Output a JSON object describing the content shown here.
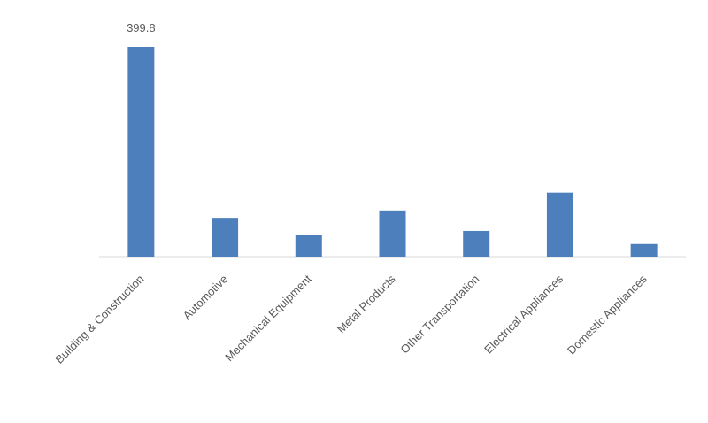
{
  "chart_data": {
    "type": "bar",
    "categories": [
      "Building & Construction",
      "Automotive",
      "Mechanical Equipment",
      "Metal Products",
      "Other Transportation",
      "Electrical Appliances",
      "Domestic Appliances"
    ],
    "values": [
      399.8,
      74,
      41,
      88,
      49,
      122,
      24
    ],
    "value_labels": [
      "399.8",
      null,
      null,
      null,
      null,
      null,
      null
    ],
    "color": "#4e7fbd"
  }
}
